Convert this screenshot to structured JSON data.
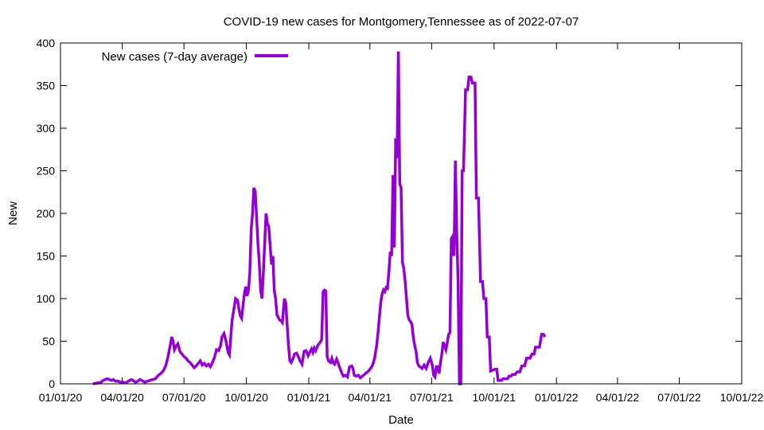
{
  "chart_data": {
    "type": "line",
    "title": "COVID-19 new cases for Montgomery,Tennessee as of 2022-07-07",
    "xlabel": "Date",
    "ylabel": "New",
    "x_range_days": [
      0,
      1004
    ],
    "ylim": [
      0,
      400
    ],
    "y_ticks": [
      0,
      50,
      100,
      150,
      200,
      250,
      300,
      350,
      400
    ],
    "x_ticks": [
      {
        "day": 0,
        "label": "01/01/20"
      },
      {
        "day": 91,
        "label": "04/01/20"
      },
      {
        "day": 182,
        "label": "07/01/20"
      },
      {
        "day": 274,
        "label": "10/01/20"
      },
      {
        "day": 366,
        "label": "01/01/21"
      },
      {
        "day": 456,
        "label": "04/01/21"
      },
      {
        "day": 547,
        "label": "07/01/21"
      },
      {
        "day": 639,
        "label": "10/01/21"
      },
      {
        "day": 731,
        "label": "01/01/22"
      },
      {
        "day": 821,
        "label": "04/01/22"
      },
      {
        "day": 912,
        "label": "07/01/22"
      },
      {
        "day": 1004,
        "label": "10/01/22"
      }
    ],
    "legend": {
      "label": "New cases (7-day average)",
      "position": "top-left"
    },
    "series": [
      {
        "name": "New cases (7-day average)",
        "color": "#9400d3",
        "points": [
          [
            48,
            0
          ],
          [
            55,
            1
          ],
          [
            60,
            2
          ],
          [
            63,
            4
          ],
          [
            66,
            5
          ],
          [
            69,
            6
          ],
          [
            72,
            5
          ],
          [
            75,
            4
          ],
          [
            78,
            5
          ],
          [
            81,
            3
          ],
          [
            85,
            3
          ],
          [
            88,
            2
          ],
          [
            92,
            2
          ],
          [
            96,
            1
          ],
          [
            100,
            3
          ],
          [
            104,
            5
          ],
          [
            107,
            4
          ],
          [
            110,
            2
          ],
          [
            114,
            3
          ],
          [
            117,
            5
          ],
          [
            120,
            4
          ],
          [
            124,
            2
          ],
          [
            128,
            3
          ],
          [
            132,
            4
          ],
          [
            136,
            5
          ],
          [
            140,
            6
          ],
          [
            143,
            9
          ],
          [
            146,
            11
          ],
          [
            149,
            13
          ],
          [
            152,
            16
          ],
          [
            155,
            21
          ],
          [
            158,
            30
          ],
          [
            160,
            38
          ],
          [
            162,
            46
          ],
          [
            164,
            55
          ],
          [
            166,
            50
          ],
          [
            168,
            40
          ],
          [
            171,
            45
          ],
          [
            173,
            47
          ],
          [
            176,
            38
          ],
          [
            179,
            35
          ],
          [
            182,
            32
          ],
          [
            185,
            30
          ],
          [
            188,
            27
          ],
          [
            191,
            25
          ],
          [
            194,
            22
          ],
          [
            197,
            19
          ],
          [
            200,
            21
          ],
          [
            203,
            24
          ],
          [
            206,
            27
          ],
          [
            209,
            22
          ],
          [
            212,
            24
          ],
          [
            215,
            21
          ],
          [
            218,
            23
          ],
          [
            221,
            20
          ],
          [
            224,
            25
          ],
          [
            227,
            31
          ],
          [
            230,
            40
          ],
          [
            233,
            39
          ],
          [
            236,
            45
          ],
          [
            238,
            55
          ],
          [
            241,
            59
          ],
          [
            244,
            50
          ],
          [
            247,
            37
          ],
          [
            249,
            34
          ],
          [
            251,
            55
          ],
          [
            253,
            75
          ],
          [
            256,
            90
          ],
          [
            258,
            100
          ],
          [
            261,
            98
          ],
          [
            263,
            88
          ],
          [
            265,
            80
          ],
          [
            267,
            77
          ],
          [
            269,
            91
          ],
          [
            271,
            106
          ],
          [
            273,
            114
          ],
          [
            275,
            103
          ],
          [
            277,
            110
          ],
          [
            279,
            130
          ],
          [
            281,
            180
          ],
          [
            283,
            200
          ],
          [
            285,
            230
          ],
          [
            287,
            226
          ],
          [
            289,
            196
          ],
          [
            291,
            165
          ],
          [
            293,
            142
          ],
          [
            295,
            110
          ],
          [
            297,
            100
          ],
          [
            299,
            130
          ],
          [
            301,
            165
          ],
          [
            303,
            200
          ],
          [
            305,
            188
          ],
          [
            307,
            185
          ],
          [
            309,
            162
          ],
          [
            311,
            140
          ],
          [
            313,
            150
          ],
          [
            315,
            110
          ],
          [
            317,
            100
          ],
          [
            319,
            81
          ],
          [
            321,
            78
          ],
          [
            323,
            75
          ],
          [
            325,
            74
          ],
          [
            327,
            72
          ],
          [
            330,
            100
          ],
          [
            332,
            95
          ],
          [
            334,
            70
          ],
          [
            336,
            45
          ],
          [
            338,
            27
          ],
          [
            340,
            25
          ],
          [
            343,
            30
          ],
          [
            345,
            35
          ],
          [
            348,
            36
          ],
          [
            351,
            31
          ],
          [
            353,
            27
          ],
          [
            356,
            23
          ],
          [
            359,
            38
          ],
          [
            362,
            39
          ],
          [
            365,
            33
          ],
          [
            368,
            38
          ],
          [
            370,
            41
          ],
          [
            372,
            37
          ],
          [
            374,
            42
          ],
          [
            376,
            39
          ],
          [
            378,
            43
          ],
          [
            380,
            46
          ],
          [
            383,
            49
          ],
          [
            385,
            52
          ],
          [
            387,
            108
          ],
          [
            389,
            110
          ],
          [
            391,
            109
          ],
          [
            393,
            32
          ],
          [
            395,
            27
          ],
          [
            398,
            25
          ],
          [
            400,
            30
          ],
          [
            402,
            25
          ],
          [
            404,
            23
          ],
          [
            407,
            29
          ],
          [
            409,
            25
          ],
          [
            411,
            20
          ],
          [
            413,
            16
          ],
          [
            415,
            12
          ],
          [
            417,
            9
          ],
          [
            420,
            10
          ],
          [
            423,
            8
          ],
          [
            426,
            20
          ],
          [
            429,
            21
          ],
          [
            431,
            18
          ],
          [
            433,
            10
          ],
          [
            436,
            9
          ],
          [
            439,
            10
          ],
          [
            442,
            7
          ],
          [
            445,
            9
          ],
          [
            448,
            11
          ],
          [
            451,
            13
          ],
          [
            454,
            15
          ],
          [
            457,
            18
          ],
          [
            460,
            22
          ],
          [
            463,
            30
          ],
          [
            466,
            45
          ],
          [
            468,
            60
          ],
          [
            470,
            78
          ],
          [
            472,
            95
          ],
          [
            474,
            105
          ],
          [
            476,
            110
          ],
          [
            478,
            108
          ],
          [
            480,
            113
          ],
          [
            482,
            112
          ],
          [
            484,
            132
          ],
          [
            486,
            155
          ],
          [
            488,
            150
          ],
          [
            490,
            245
          ],
          [
            492,
            160
          ],
          [
            494,
            288
          ],
          [
            496,
            265
          ],
          [
            498,
            390
          ],
          [
            500,
            235
          ],
          [
            502,
            230
          ],
          [
            504,
            143
          ],
          [
            506,
            135
          ],
          [
            508,
            120
          ],
          [
            510,
            100
          ],
          [
            512,
            80
          ],
          [
            514,
            75
          ],
          [
            516,
            73
          ],
          [
            518,
            70
          ],
          [
            520,
            55
          ],
          [
            522,
            45
          ],
          [
            524,
            38
          ],
          [
            526,
            25
          ],
          [
            528,
            21
          ],
          [
            530,
            20
          ],
          [
            533,
            18
          ],
          [
            536,
            22
          ],
          [
            539,
            18
          ],
          [
            542,
            25
          ],
          [
            545,
            30
          ],
          [
            548,
            22
          ],
          [
            550,
            10
          ],
          [
            552,
            8
          ],
          [
            554,
            20
          ],
          [
            556,
            20
          ],
          [
            558,
            12
          ],
          [
            560,
            25
          ],
          [
            562,
            35
          ],
          [
            564,
            49
          ],
          [
            566,
            45
          ],
          [
            568,
            40
          ],
          [
            570,
            48
          ],
          [
            572,
            58
          ],
          [
            574,
            60
          ],
          [
            576,
            170
          ],
          [
            578,
            173
          ],
          [
            580,
            150
          ],
          [
            582,
            262
          ],
          [
            584,
            180
          ],
          [
            586,
            120
          ],
          [
            588,
            0
          ],
          [
            589,
            0
          ],
          [
            590,
            0
          ],
          [
            592,
            250
          ],
          [
            594,
            250
          ],
          [
            597,
            345
          ],
          [
            600,
            345
          ],
          [
            602,
            360
          ],
          [
            605,
            360
          ],
          [
            607,
            353
          ],
          [
            611,
            353
          ],
          [
            613,
            218
          ],
          [
            616,
            218
          ],
          [
            619,
            120
          ],
          [
            622,
            120
          ],
          [
            624,
            100
          ],
          [
            627,
            100
          ],
          [
            629,
            55
          ],
          [
            632,
            55
          ],
          [
            634,
            15
          ],
          [
            640,
            17
          ],
          [
            643,
            17
          ],
          [
            645,
            4
          ],
          [
            650,
            4
          ],
          [
            652,
            6
          ],
          [
            659,
            6
          ],
          [
            661,
            9
          ],
          [
            664,
            9
          ],
          [
            666,
            11
          ],
          [
            670,
            11
          ],
          [
            673,
            14
          ],
          [
            677,
            14
          ],
          [
            680,
            21
          ],
          [
            684,
            21
          ],
          [
            687,
            30
          ],
          [
            692,
            30
          ],
          [
            695,
            35
          ],
          [
            698,
            35
          ],
          [
            700,
            43
          ],
          [
            706,
            43
          ],
          [
            709,
            58
          ],
          [
            712,
            58
          ],
          [
            714,
            55
          ]
        ]
      }
    ]
  }
}
